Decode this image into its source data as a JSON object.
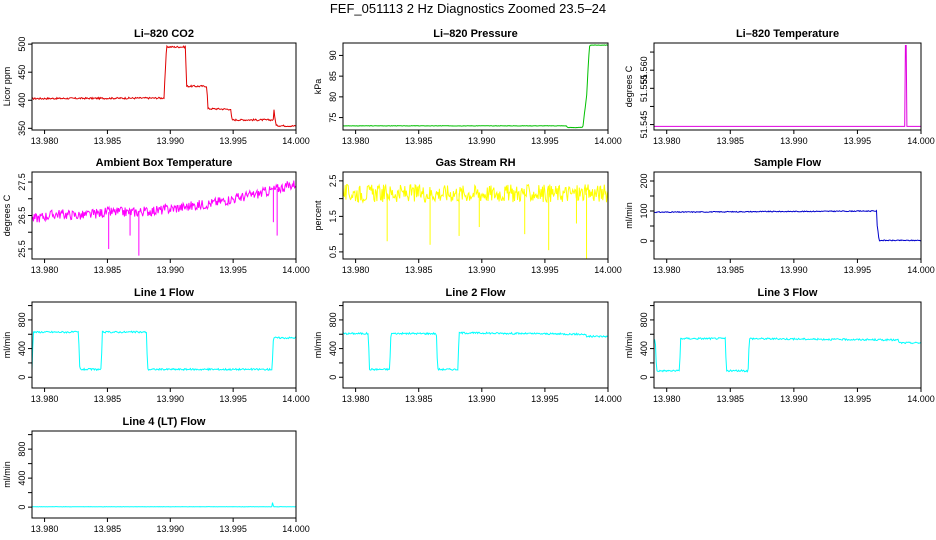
{
  "figure": {
    "title": "FEF_051113  2 Hz Diagnostics Zoomed 23.5–24"
  },
  "chart_data": [
    {
      "type": "line",
      "title": "Li–820 CO2",
      "ylabel": "Licor ppm",
      "xlim": [
        13.979,
        14.0
      ],
      "xticks": [
        13.98,
        13.985,
        13.99,
        13.995,
        14.0
      ],
      "xtick_labels": [
        "13.980",
        "13.985",
        "13.990",
        "13.995",
        "14.000"
      ],
      "ylim": [
        347,
        502
      ],
      "yticks": [
        350,
        400,
        450,
        500
      ],
      "ytick_labels": [
        "350",
        "400",
        "450",
        "500"
      ],
      "color": "#e00000",
      "x": [
        13.979,
        13.9895,
        13.9897,
        13.9912,
        13.9913,
        13.9929,
        13.993,
        13.9948,
        13.9949,
        13.9982,
        13.99825,
        13.99835,
        13.9984,
        14.0
      ],
      "y": [
        403,
        404,
        495,
        495,
        425,
        425,
        385,
        384,
        365,
        365,
        383,
        365,
        355,
        354
      ],
      "noise": 1.5
    },
    {
      "type": "line",
      "title": "Li–820 Pressure",
      "ylabel": "kPa",
      "xlim": [
        13.979,
        14.0
      ],
      "xticks": [
        13.98,
        13.985,
        13.99,
        13.995,
        14.0
      ],
      "xtick_labels": [
        "13.980",
        "13.985",
        "13.990",
        "13.995",
        "14.000"
      ],
      "ylim": [
        72,
        93
      ],
      "yticks": [
        75,
        80,
        85,
        90
      ],
      "ytick_labels": [
        "75",
        "80",
        "85",
        "90"
      ],
      "color": "#00c000",
      "x": [
        13.979,
        13.9967,
        13.9968,
        13.998,
        13.9983,
        13.9985,
        13.99855,
        14.0
      ],
      "y": [
        73,
        73,
        72.6,
        72.6,
        80,
        91,
        92.5,
        92.5
      ],
      "noise": 0.05
    },
    {
      "type": "line",
      "title": "Li–820 Temperature",
      "ylabel": "degrees C",
      "xlim": [
        13.979,
        14.0
      ],
      "xticks": [
        13.98,
        13.985,
        13.99,
        13.995,
        14.0
      ],
      "xtick_labels": [
        "13.980",
        "13.985",
        "13.990",
        "13.995",
        "14.000"
      ],
      "ylim": [
        51.5435,
        51.5675
      ],
      "yticks": [
        51.545,
        51.55,
        51.555,
        51.56,
        51.565
      ],
      "ytick_labels": [
        "51.545",
        "",
        "51.555",
        "51.560",
        ""
      ],
      "color": "#e000e0",
      "x": [
        13.979,
        13.99875,
        13.99876,
        13.99884,
        13.99885,
        14.0
      ],
      "y": [
        51.5445,
        51.5445,
        51.5668,
        51.5668,
        51.5445,
        51.5445
      ],
      "noise": 0
    },
    {
      "type": "line",
      "title": "Ambient Box Temperature",
      "ylabel": "degrees C",
      "xlim": [
        13.979,
        14.0
      ],
      "xticks": [
        13.98,
        13.985,
        13.99,
        13.995,
        14.0
      ],
      "xtick_labels": [
        "13.980",
        "13.985",
        "13.990",
        "13.995",
        "14.000"
      ],
      "ylim": [
        25.2,
        27.8
      ],
      "yticks": [
        25.5,
        26,
        26.5,
        27,
        27.5
      ],
      "ytick_labels": [
        "25.5",
        "",
        "26.5",
        "",
        "27.5"
      ],
      "color": "#ff00ff",
      "x": [
        13.979,
        13.981,
        13.983,
        13.985,
        13.987,
        13.989,
        13.991,
        13.993,
        13.995,
        13.997,
        13.999,
        14.0
      ],
      "y": [
        26.4,
        26.55,
        26.5,
        26.6,
        26.6,
        26.65,
        26.75,
        26.85,
        27.0,
        27.15,
        27.35,
        27.45
      ],
      "noise": 0.15,
      "spikes": [
        [
          13.9851,
          25.5
        ],
        [
          13.9875,
          25.3
        ],
        [
          13.9868,
          25.9
        ],
        [
          13.9985,
          25.9
        ],
        [
          13.9982,
          26.3
        ]
      ]
    },
    {
      "type": "line",
      "title": "Gas Stream RH",
      "ylabel": "percent",
      "xlim": [
        13.979,
        14.0
      ],
      "xticks": [
        13.98,
        13.985,
        13.99,
        13.995,
        14.0
      ],
      "xtick_labels": [
        "13.980",
        "13.985",
        "13.990",
        "13.995",
        "14.000"
      ],
      "ylim": [
        0.3,
        2.75
      ],
      "yticks": [
        0.5,
        1,
        1.5,
        2,
        2.5
      ],
      "ytick_labels": [
        "0.5",
        "",
        "1.5",
        "",
        "2.5"
      ],
      "color": "#ffff00",
      "x": [
        13.979,
        14.0
      ],
      "y": [
        2.15,
        2.15
      ],
      "noise": 0.25,
      "spikes": [
        [
          13.9825,
          0.8
        ],
        [
          13.9859,
          0.7
        ],
        [
          13.9882,
          0.95
        ],
        [
          13.9934,
          1.0
        ],
        [
          13.9953,
          0.55
        ],
        [
          13.9983,
          0.3
        ],
        [
          13.9898,
          1.2
        ],
        [
          13.9975,
          1.3
        ]
      ]
    },
    {
      "type": "line",
      "title": "Sample Flow",
      "ylabel": "ml/min",
      "xlim": [
        13.979,
        14.0
      ],
      "xticks": [
        13.98,
        13.985,
        13.99,
        13.995,
        14.0
      ],
      "xtick_labels": [
        "13.980",
        "13.985",
        "13.990",
        "13.995",
        "14.000"
      ],
      "ylim": [
        -60,
        230
      ],
      "yticks": [
        0,
        50,
        100,
        150,
        200
      ],
      "ytick_labels": [
        "0",
        "",
        "100",
        "",
        "200"
      ],
      "color": "#0000cc",
      "x": [
        13.979,
        13.9965,
        13.99655,
        13.9967,
        14.0
      ],
      "y": [
        96,
        100,
        55,
        2,
        2
      ],
      "noise": 1.5
    },
    {
      "type": "line",
      "title": "Line 1 Flow",
      "ylabel": "ml/min",
      "xlim": [
        13.979,
        14.0
      ],
      "xticks": [
        13.98,
        13.985,
        13.99,
        13.995,
        14.0
      ],
      "xtick_labels": [
        "13.980",
        "13.985",
        "13.990",
        "13.995",
        "14.000"
      ],
      "ylim": [
        -150,
        1050
      ],
      "yticks": [
        0,
        200,
        400,
        600,
        800,
        1000
      ],
      "ytick_labels": [
        "0",
        "",
        "400",
        "",
        "800",
        ""
      ],
      "color": "#00ffff",
      "x": [
        13.979,
        13.9791,
        13.9827,
        13.9828,
        13.9845,
        13.9846,
        13.9881,
        13.9882,
        13.9981,
        13.9982,
        14.0
      ],
      "y": [
        110,
        630,
        630,
        110,
        110,
        630,
        630,
        110,
        110,
        550,
        550
      ],
      "noise": 12
    },
    {
      "type": "line",
      "title": "Line 2 Flow",
      "ylabel": "ml/min",
      "xlim": [
        13.979,
        14.0
      ],
      "xticks": [
        13.98,
        13.985,
        13.99,
        13.995,
        14.0
      ],
      "xtick_labels": [
        "13.980",
        "13.985",
        "13.990",
        "13.995",
        "14.000"
      ],
      "ylim": [
        -150,
        1050
      ],
      "yticks": [
        0,
        200,
        400,
        600,
        800,
        1000
      ],
      "ytick_labels": [
        "0",
        "",
        "400",
        "",
        "800",
        ""
      ],
      "color": "#00ffff",
      "x": [
        13.979,
        13.981,
        13.9811,
        13.9827,
        13.9828,
        13.9864,
        13.9865,
        13.9881,
        13.9882,
        13.9982,
        13.9983,
        14.0
      ],
      "y": [
        610,
        610,
        110,
        110,
        610,
        610,
        110,
        110,
        620,
        600,
        570,
        570
      ],
      "noise": 12
    },
    {
      "type": "line",
      "title": "Line 3 Flow",
      "ylabel": "ml/min",
      "xlim": [
        13.979,
        14.0
      ],
      "xticks": [
        13.98,
        13.985,
        13.99,
        13.995,
        14.0
      ],
      "xtick_labels": [
        "13.980",
        "13.985",
        "13.990",
        "13.995",
        "14.000"
      ],
      "ylim": [
        -150,
        1050
      ],
      "yticks": [
        0,
        200,
        400,
        600,
        800,
        1000
      ],
      "ytick_labels": [
        "0",
        "",
        "400",
        "",
        "800",
        ""
      ],
      "color": "#00ffff",
      "x": [
        13.979,
        13.9791,
        13.9792,
        13.981,
        13.9811,
        13.9846,
        13.9847,
        13.9864,
        13.9865,
        13.9982,
        13.9983,
        14.0
      ],
      "y": [
        530,
        530,
        90,
        90,
        540,
        540,
        90,
        90,
        540,
        520,
        480,
        480
      ],
      "noise": 12
    },
    {
      "type": "line",
      "title": "Line 4 (LT) Flow",
      "ylabel": "ml/min",
      "xlim": [
        13.979,
        14.0
      ],
      "xticks": [
        13.98,
        13.985,
        13.99,
        13.995,
        14.0
      ],
      "xtick_labels": [
        "13.980",
        "13.985",
        "13.990",
        "13.995",
        "14.000"
      ],
      "ylim": [
        -150,
        1050
      ],
      "yticks": [
        0,
        200,
        400,
        600,
        800,
        1000
      ],
      "ytick_labels": [
        "0",
        "",
        "400",
        "",
        "800",
        ""
      ],
      "color": "#00ffff",
      "x": [
        13.979,
        13.9981,
        13.99815,
        13.9982,
        13.9983,
        14.0
      ],
      "y": [
        5,
        5,
        90,
        5,
        5,
        5
      ],
      "noise": 2
    }
  ]
}
